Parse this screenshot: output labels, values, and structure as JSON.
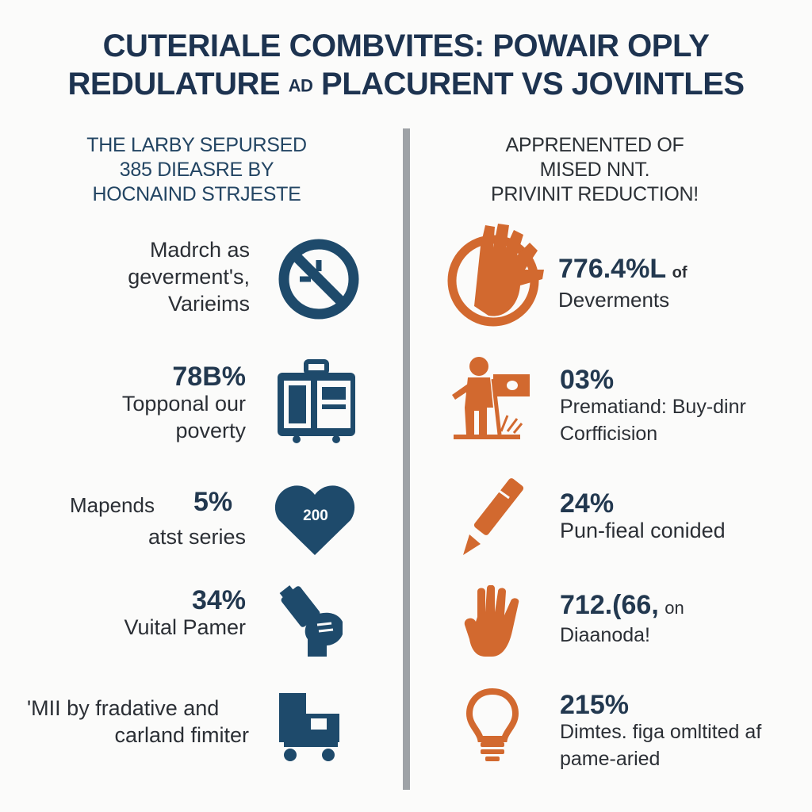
{
  "title": {
    "line1": "CUTERIALE COMBVITES:  POWAIR OPLY",
    "line2a": "REDULATURE ",
    "line2b": "AD",
    "line2c": " PLACURENT VS JOVINTLES"
  },
  "left": {
    "subhead": [
      "THE LARBY SEPURSED",
      "385 DIEASRE BY",
      "HOCNAIND STRJESTE"
    ],
    "items": [
      {
        "lines": [
          "Madrch as",
          "geverment's,",
          "Varieims"
        ],
        "icon": "no-entry-icon"
      },
      {
        "stat": "78B%",
        "lines": [
          "Topponal our",
          "poverty"
        ],
        "icon": "luggage-icon"
      },
      {
        "lead": "Mapends",
        "stat": "5%",
        "lines": [
          "atst series"
        ],
        "icon": "heart-icon",
        "badge": "200"
      },
      {
        "stat": "34%",
        "lines": [
          "Vuital Pamer"
        ],
        "icon": "hand-with-bottle-icon"
      },
      {
        "lead": "'MII",
        "lines": [
          "by fradative and",
          "carland fimiter"
        ],
        "icon": "truck-icon"
      }
    ]
  },
  "right": {
    "subhead": [
      "APPRENENTED OF",
      "MISED NNT.",
      "PRIVINIT REDUCTION!"
    ],
    "items": [
      {
        "stat": "776.4%L",
        "suffix": "of",
        "lines": [
          "Deverments"
        ],
        "icon": "hand-pie-icon"
      },
      {
        "stat": "03%",
        "lines": [
          "Prematiand: Buy-dinr",
          "Corfficision"
        ],
        "icon": "person-flag-icon"
      },
      {
        "stat": "24%",
        "lines": [
          "Pun-fieal conided"
        ],
        "icon": "pen-icon"
      },
      {
        "stat": "712.(66,",
        "suffix": "on",
        "lines": [
          "Diaanoda!"
        ],
        "icon": "hand-icon"
      },
      {
        "stat": "215%",
        "lines": [
          "Dimtes. figa omltited af",
          "pame-aried"
        ],
        "icon": "lightbulb-icon"
      }
    ]
  },
  "colors": {
    "navy": "#1e4a6b",
    "orange": "#d2692f",
    "divider": "#9ea2a6"
  }
}
